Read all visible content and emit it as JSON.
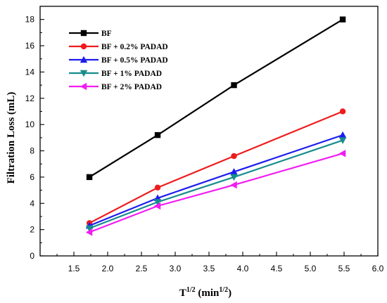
{
  "chart_data": {
    "type": "line",
    "title": "",
    "xlabel": {
      "base": "T",
      "sup": "1/2",
      "unit_open": " (min",
      "unit_sup": "1/2",
      "unit_close": ")"
    },
    "ylabel": "Filtration Loss (mL)",
    "xlim": [
      1.0,
      6.0
    ],
    "ylim": [
      0,
      19
    ],
    "xticks": [
      "1.5",
      "2.0",
      "2.5",
      "3.0",
      "3.5",
      "4.0",
      "4.5",
      "5.0",
      "5.5",
      "6.0"
    ],
    "yticks": [
      "0",
      "2",
      "4",
      "6",
      "8",
      "10",
      "12",
      "14",
      "16",
      "18"
    ],
    "grid": false,
    "legend_position": "top-left",
    "x": [
      1.73,
      2.74,
      3.87,
      5.48
    ],
    "series": [
      {
        "name": "BF",
        "color": "#000000",
        "marker": "square",
        "values": [
          6.0,
          9.2,
          13.0,
          18.0
        ]
      },
      {
        "name": "BF + 0.2% PADAD",
        "color": "#ee1c1c",
        "marker": "circle",
        "values": [
          2.5,
          5.2,
          7.6,
          11.0
        ]
      },
      {
        "name": "BF + 0.5% PADAD",
        "color": "#1c1cee",
        "marker": "triangle-up",
        "values": [
          2.3,
          4.4,
          6.4,
          9.2
        ]
      },
      {
        "name": "BF + 1% PADAD",
        "color": "#168c8c",
        "marker": "triangle-down",
        "values": [
          2.1,
          4.1,
          6.0,
          8.8
        ]
      },
      {
        "name": "BF + 2% PADAD",
        "color": "#f21cf2",
        "marker": "triangle-left",
        "values": [
          1.8,
          3.8,
          5.4,
          7.8
        ]
      }
    ]
  }
}
